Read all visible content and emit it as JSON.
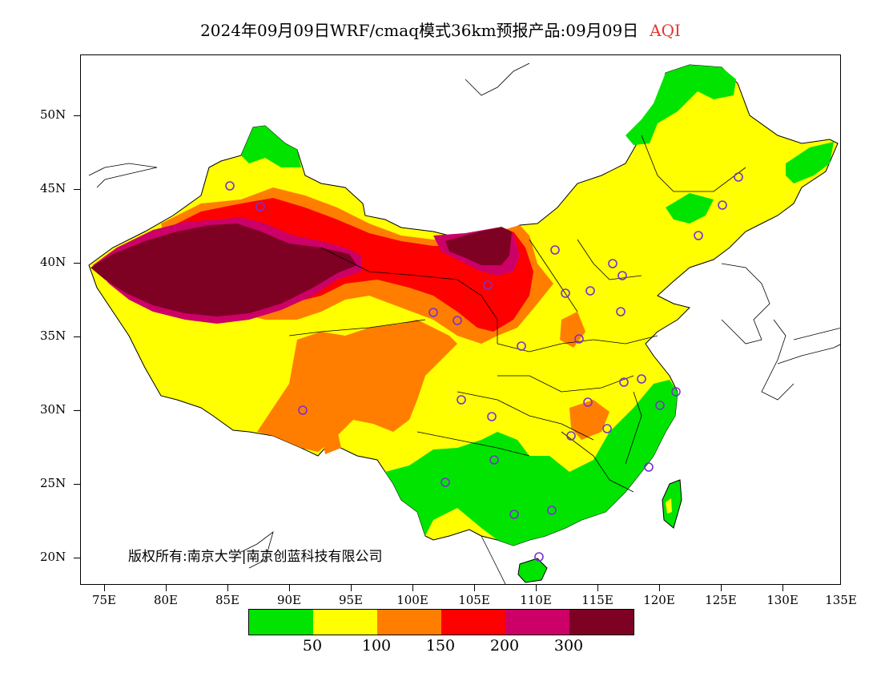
{
  "title": {
    "main": "2024年09月09日WRF/cmaq模式36km预报产品:09月09日",
    "variable": "AQI"
  },
  "colors": {
    "variable_title": "#e8362f",
    "legend": [
      "#00e400",
      "#ffff00",
      "#ff7e00",
      "#ff0000",
      "#cc0066",
      "#7e0023"
    ],
    "station_marker": "#7b2fd1"
  },
  "axes": {
    "y_labels": [
      "50N",
      "45N",
      "40N",
      "35N",
      "30N",
      "25N",
      "20N"
    ],
    "x_labels": [
      "75E",
      "80E",
      "85E",
      "90E",
      "95E",
      "100E",
      "105E",
      "110E",
      "115E",
      "120E",
      "125E",
      "130E",
      "135E"
    ]
  },
  "legend": {
    "labels": [
      "50",
      "100",
      "150",
      "200",
      "300"
    ]
  },
  "copyright": "版权所有:南京大学|南京创蓝科技有限公司"
}
